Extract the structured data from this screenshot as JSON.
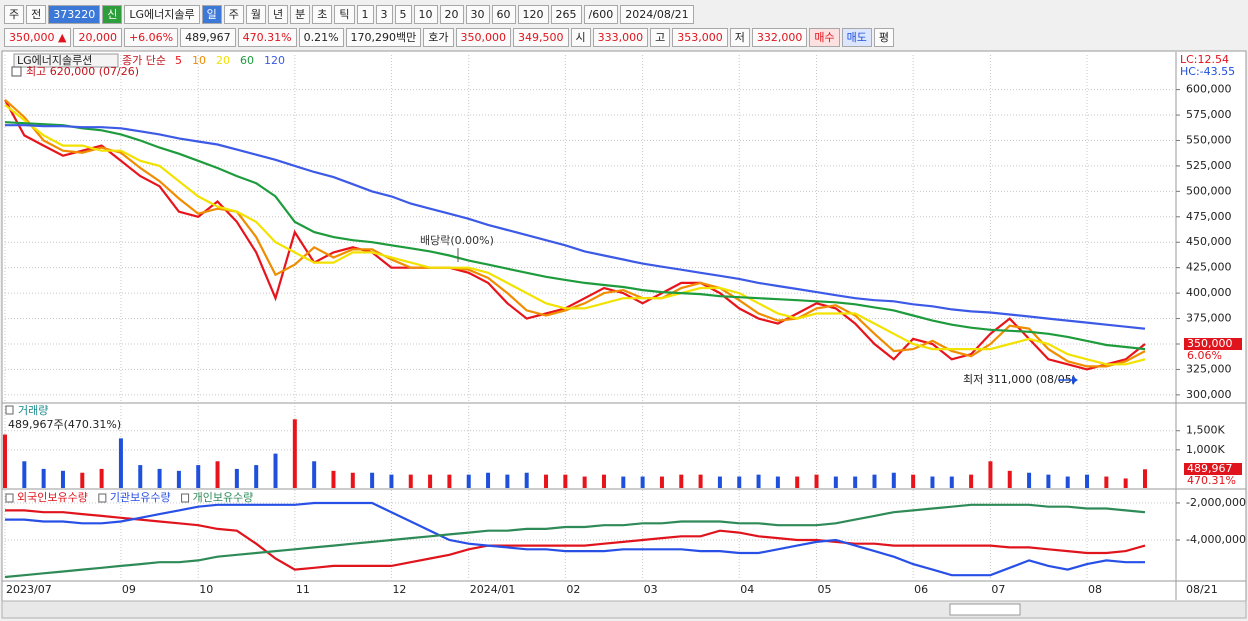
{
  "toolbar": {
    "row1": [
      "주",
      "전",
      "373220",
      "신",
      "LG에너지솔루",
      "일",
      "주",
      "월",
      "년",
      "분",
      "초",
      "틱",
      "1",
      "3",
      "5",
      "10",
      "20",
      "30",
      "60",
      "120",
      "265",
      "/600",
      "2024/08/21"
    ],
    "row2": [
      "350,000 ▲",
      "20,000",
      "+6.06%",
      "489,967",
      "470.31%",
      "0.21%",
      "170,290백만",
      "호가",
      "350,000",
      "349,500",
      "시",
      "333,000",
      "고",
      "353,000",
      "저",
      "332,000",
      "매수",
      "매도",
      "평"
    ]
  },
  "chart_data": [
    {
      "type": "line",
      "title": "LG에너지솔루션",
      "subtitle": "종가 단순",
      "categories": [
        "2023/07",
        null,
        null,
        null,
        null,
        null,
        "09",
        null,
        null,
        null,
        "10",
        null,
        null,
        null,
        null,
        "11",
        null,
        null,
        null,
        null,
        "12",
        null,
        null,
        null,
        "2024/01",
        null,
        null,
        null,
        null,
        "02",
        null,
        null,
        null,
        "03",
        null,
        null,
        null,
        null,
        "04",
        null,
        null,
        null,
        "05",
        null,
        null,
        null,
        null,
        "06",
        null,
        null,
        null,
        "07",
        null,
        null,
        null,
        null,
        "08",
        null,
        null,
        null
      ],
      "series": [
        {
          "name": "5",
          "color": "#e8141c",
          "values": [
            590000,
            555000,
            545000,
            535000,
            540000,
            545000,
            530000,
            515000,
            505000,
            480000,
            475000,
            490000,
            470000,
            440000,
            395000,
            460000,
            430000,
            440000,
            445000,
            440000,
            425000,
            425000,
            425000,
            425000,
            420000,
            410000,
            390000,
            375000,
            380000,
            385000,
            395000,
            405000,
            400000,
            390000,
            400000,
            410000,
            410000,
            400000,
            385000,
            375000,
            370000,
            380000,
            390000,
            385000,
            370000,
            350000,
            335000,
            355000,
            350000,
            335000,
            340000,
            360000,
            375000,
            355000,
            335000,
            330000,
            325000,
            330000,
            335000,
            350000
          ]
        },
        {
          "name": "10",
          "color": "#f08c00",
          "values": [
            590000,
            573000,
            550000,
            540000,
            538000,
            543000,
            538000,
            523000,
            510000,
            493000,
            478000,
            483000,
            480000,
            455000,
            418000,
            428000,
            445000,
            435000,
            443000,
            443000,
            433000,
            425000,
            425000,
            425000,
            423000,
            415000,
            400000,
            383000,
            378000,
            383000,
            390000,
            400000,
            403000,
            395000,
            395000,
            405000,
            410000,
            405000,
            393000,
            380000,
            373000,
            375000,
            385000,
            388000,
            378000,
            360000,
            343000,
            345000,
            353000,
            343000,
            338000,
            350000,
            368000,
            365000,
            345000,
            333000,
            328000,
            328000,
            333000,
            343000
          ]
        },
        {
          "name": "20",
          "color": "#f2e200",
          "values": [
            585000,
            570000,
            555000,
            545000,
            545000,
            540000,
            540000,
            530000,
            525000,
            510000,
            495000,
            485000,
            480000,
            470000,
            450000,
            440000,
            430000,
            430000,
            440000,
            440000,
            435000,
            430000,
            425000,
            425000,
            425000,
            420000,
            410000,
            400000,
            390000,
            385000,
            385000,
            390000,
            395000,
            395000,
            395000,
            400000,
            405000,
            405000,
            400000,
            390000,
            380000,
            375000,
            380000,
            380000,
            380000,
            370000,
            360000,
            350000,
            345000,
            345000,
            345000,
            345000,
            350000,
            355000,
            350000,
            340000,
            335000,
            330000,
            330000,
            335000
          ]
        },
        {
          "name": "60",
          "color": "#1e9b3c",
          "values": [
            568000,
            567000,
            566000,
            565000,
            562000,
            560000,
            556000,
            550000,
            543000,
            537000,
            530000,
            523000,
            515000,
            508000,
            495000,
            470000,
            460000,
            455000,
            452000,
            450000,
            447000,
            444000,
            441000,
            437000,
            432000,
            428000,
            424000,
            420000,
            416000,
            413000,
            410000,
            408000,
            406000,
            403000,
            401000,
            400000,
            399000,
            397000,
            396000,
            395000,
            394000,
            393000,
            392000,
            391000,
            389000,
            386000,
            383000,
            378000,
            373000,
            369000,
            366000,
            364000,
            363000,
            362000,
            360000,
            357000,
            353000,
            349000,
            347000,
            345000
          ]
        },
        {
          "name": "120",
          "color": "#3c5ae6",
          "values": [
            565000,
            565000,
            564000,
            564000,
            563000,
            563000,
            562000,
            559000,
            556000,
            552000,
            549000,
            546000,
            541000,
            536000,
            531000,
            525000,
            519000,
            514000,
            507000,
            500000,
            495000,
            488000,
            483000,
            478000,
            473000,
            467000,
            462000,
            457000,
            452000,
            447000,
            441000,
            437000,
            433000,
            429000,
            426000,
            423000,
            420000,
            417000,
            414000,
            410000,
            407000,
            404000,
            401000,
            398000,
            395000,
            393000,
            392000,
            389000,
            387000,
            384000,
            382000,
            381000,
            379000,
            377000,
            375000,
            373000,
            371000,
            369000,
            367000,
            365000
          ]
        }
      ],
      "ylim": [
        293000,
        634000
      ],
      "yticks": [
        {
          "value": 300000,
          "label": "300,000"
        },
        {
          "value": 325000,
          "label": "325,000"
        },
        {
          "value": 350000,
          "label": "350,000"
        },
        {
          "value": 375000,
          "label": "375,000"
        },
        {
          "value": 400000,
          "label": "400,000"
        },
        {
          "value": 425000,
          "label": "425,000"
        },
        {
          "value": 450000,
          "label": "450,000"
        },
        {
          "value": 475000,
          "label": "475,000"
        },
        {
          "value": 500000,
          "label": "500,000"
        },
        {
          "value": 525000,
          "label": "525,000"
        },
        {
          "value": 550000,
          "label": "550,000"
        },
        {
          "value": 575000,
          "label": "575,000"
        },
        {
          "value": 600000,
          "label": "600,000"
        }
      ],
      "grid": true,
      "annotations": [
        "최고 620,000 (07/26)",
        "배당락(0.00%)",
        "최저 311,000 (08/05)"
      ],
      "last_value_label": "350,000",
      "last_change_label": "6.06%",
      "lc_label": "LC:12.54",
      "hc_label": "HC:-43.55",
      "end_date_label": "08/21"
    },
    {
      "type": "bar",
      "title": "거래량",
      "subtitle": "489,967주(470.31%)",
      "values": [
        1400000,
        700000,
        500000,
        450000,
        400000,
        500000,
        1300000,
        600000,
        500000,
        450000,
        600000,
        700000,
        500000,
        600000,
        900000,
        1800000,
        700000,
        450000,
        400000,
        400000,
        350000,
        350000,
        350000,
        350000,
        350000,
        400000,
        350000,
        400000,
        350000,
        350000,
        300000,
        350000,
        300000,
        300000,
        300000,
        350000,
        350000,
        300000,
        300000,
        350000,
        300000,
        300000,
        350000,
        300000,
        300000,
        350000,
        400000,
        350000,
        300000,
        300000,
        350000,
        700000,
        450000,
        400000,
        350000,
        300000,
        350000,
        300000,
        250000,
        489967
      ],
      "color": "#e8141c",
      "down_color": "#1e50dc",
      "ylim": [
        0,
        2200000
      ],
      "yticks": [
        {
          "value": 1000000,
          "label": "1,000K"
        },
        {
          "value": 1500000,
          "label": "1,500K"
        }
      ],
      "grid": true,
      "last_value_label": "489,967",
      "last_change_label": "470.31%"
    },
    {
      "type": "line",
      "series": [
        {
          "name": "외국인보유수량",
          "color": "#e0141c",
          "values": [
            -2400000,
            -2400000,
            -2500000,
            -2500000,
            -2600000,
            -2700000,
            -2800000,
            -2900000,
            -3000000,
            -3100000,
            -3200000,
            -3400000,
            -3500000,
            -4200000,
            -5000000,
            -5600000,
            -5500000,
            -5400000,
            -5400000,
            -5400000,
            -5400000,
            -5200000,
            -5000000,
            -4800000,
            -4500000,
            -4300000,
            -4300000,
            -4300000,
            -4300000,
            -4300000,
            -4300000,
            -4200000,
            -4100000,
            -4000000,
            -3900000,
            -3800000,
            -3800000,
            -3500000,
            -3600000,
            -3800000,
            -3900000,
            -4000000,
            -4000000,
            -4100000,
            -4200000,
            -4200000,
            -4300000,
            -4300000,
            -4300000,
            -4300000,
            -4300000,
            -4300000,
            -4400000,
            -4400000,
            -4500000,
            -4600000,
            -4700000,
            -4700000,
            -4600000,
            -4300000
          ]
        },
        {
          "name": "기관보유수량",
          "color": "#2850e6",
          "values": [
            -2900000,
            -2900000,
            -3000000,
            -3000000,
            -3100000,
            -3100000,
            -3000000,
            -2800000,
            -2600000,
            -2400000,
            -2200000,
            -2100000,
            -2100000,
            -2100000,
            -2100000,
            -2100000,
            -2000000,
            -2000000,
            -2000000,
            -2000000,
            -2500000,
            -3000000,
            -3500000,
            -4000000,
            -4200000,
            -4300000,
            -4400000,
            -4500000,
            -4500000,
            -4600000,
            -4600000,
            -4600000,
            -4500000,
            -4500000,
            -4500000,
            -4500000,
            -4600000,
            -4600000,
            -4700000,
            -4700000,
            -4500000,
            -4300000,
            -4100000,
            -4000000,
            -4300000,
            -4600000,
            -4900000,
            -5300000,
            -5600000,
            -5900000,
            -5900000,
            -5900000,
            -5500000,
            -5100000,
            -5400000,
            -5600000,
            -5300000,
            -5100000,
            -5200000,
            -5200000
          ]
        },
        {
          "name": "개인보유수량",
          "color": "#2e8b57",
          "values": [
            -6000000,
            -5900000,
            -5800000,
            -5700000,
            -5600000,
            -5500000,
            -5400000,
            -5300000,
            -5200000,
            -5200000,
            -5100000,
            -4900000,
            -4800000,
            -4700000,
            -4600000,
            -4500000,
            -4400000,
            -4300000,
            -4200000,
            -4100000,
            -4000000,
            -3900000,
            -3800000,
            -3700000,
            -3600000,
            -3500000,
            -3500000,
            -3400000,
            -3400000,
            -3300000,
            -3300000,
            -3200000,
            -3200000,
            -3100000,
            -3100000,
            -3000000,
            -3000000,
            -3000000,
            -3100000,
            -3100000,
            -3200000,
            -3200000,
            -3200000,
            -3100000,
            -2900000,
            -2700000,
            -2500000,
            -2400000,
            -2300000,
            -2200000,
            -2100000,
            -2100000,
            -2100000,
            -2100000,
            -2200000,
            -2200000,
            -2300000,
            -2300000,
            -2400000,
            -2500000
          ]
        }
      ],
      "ylim": [
        -6160000,
        -1300000
      ],
      "yticks": [
        {
          "value": -4000000,
          "label": "-4,000,000"
        },
        {
          "value": -2000000,
          "label": "-2,000,000"
        }
      ],
      "grid": true
    }
  ]
}
